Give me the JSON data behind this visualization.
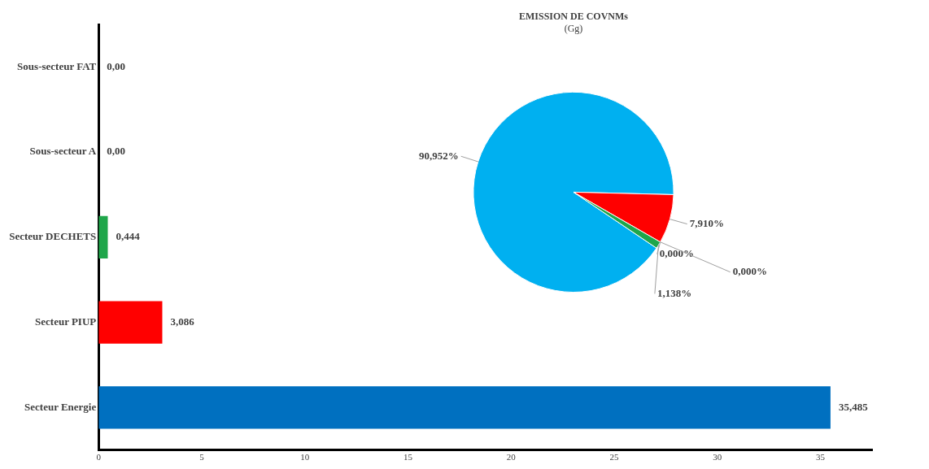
{
  "chart_data": [
    {
      "type": "bar",
      "orientation": "horizontal",
      "categories": [
        "Sous-secteur FAT",
        "Sous-secteur A",
        "Secteur DECHETS",
        "Secteur PIUP",
        "Secteur Energie"
      ],
      "values": [
        0,
        0,
        0.444,
        3.086,
        35.485
      ],
      "colors": [
        "#1a7a3a",
        "#1a7a3a",
        "#1fa64a",
        "#ff0000",
        "#0070c0"
      ],
      "value_labels": [
        "0,00",
        "0,00",
        "0,444",
        "3,086",
        "35,485"
      ],
      "xlim": [
        0,
        37.5
      ],
      "xticks": [
        0,
        5,
        10,
        15,
        20,
        25,
        30,
        35
      ]
    },
    {
      "type": "pie",
      "title": "EMISSION DE COVNMs",
      "subtitle": "(Gg)",
      "categories": [
        null,
        null,
        null,
        null,
        null
      ],
      "values": [
        90.952,
        7.91,
        0,
        0,
        1.138
      ],
      "colors": [
        "#00b0f0",
        "#ff0000",
        "#0b5a2a",
        "#0b5a2a",
        "#1fa64a"
      ],
      "value_labels": [
        "90,952%",
        "7,910%",
        "0,000%",
        "0,000%",
        "1,138%"
      ]
    }
  ]
}
